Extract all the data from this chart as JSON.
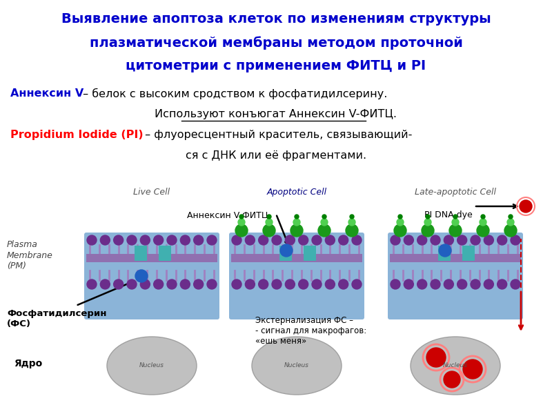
{
  "title_line1": "Выявление апоптоза клеток по изменениям структуры",
  "title_line2": "плазматической мембраны методом проточной",
  "title_line3": "цитометрии с применением ФИТЦ и PI",
  "title_color": "#0000CC",
  "sub1_blue": "Аннексин V",
  "sub1_black": " – белок с высоким сродством к фосфатидилсерину.",
  "sub2": "Используют конъюгат Аннексин V-ФИТЦ.",
  "sub3_red": "Propidium Iodide (PI)",
  "sub3_black": " – флуоресцентный краситель, связывающий-",
  "sub4": "ся с ДНК или её фрагментами.",
  "cell_labels": [
    "Live Cell",
    "Apoptotic Cell",
    "Late-apoptotic Cell"
  ],
  "annexin_label": "Аннексин V-ФИТЦ",
  "pi_label": "PI DNA dye",
  "plasma_label": "Plasma\nMembrane\n(PM)",
  "ps_label": "Фосфатидилсерин\n(ФС)",
  "nucleus_label": "Ядро",
  "extern_label": "Экстернализация ФС –\n- сигнал для макрофагов:\n«ешь меня»",
  "bg": "#FFFFFF"
}
